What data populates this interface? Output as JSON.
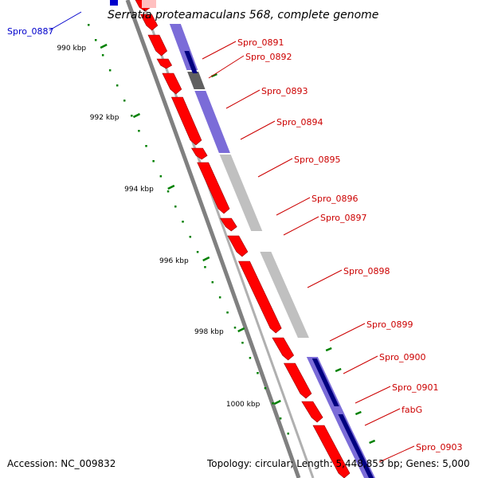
{
  "title": "Serratia proteamaculans 568, complete genome",
  "footer": {
    "accession": "Accession: NC_009832",
    "info": "Topology: circular; Length: 5,448,853 bp; Genes: 5,000"
  },
  "colors": {
    "forward_cds": "#ff0000",
    "reverse_cds": "#0000cc",
    "ortholog_light": "#7b6cd8",
    "ortholog_dark": "#000080",
    "ortholog_grey": "#c0c0c0",
    "backbone": "#808080",
    "ticks": "#008000",
    "label_red": "#cc0000",
    "label_blue": "#0000cc"
  },
  "ticks": [
    {
      "label": "990 kbp"
    },
    {
      "label": "992 kbp"
    },
    {
      "label": "994 kbp"
    },
    {
      "label": "996 kbp"
    },
    {
      "label": "998 kbp"
    },
    {
      "label": "1000 kbp"
    }
  ],
  "genes": [
    {
      "label": "Spro_0887",
      "color": "blue"
    },
    {
      "label": "Spro_0891",
      "color": "red"
    },
    {
      "label": "Spro_0892",
      "color": "red"
    },
    {
      "label": "Spro_0893",
      "color": "red"
    },
    {
      "label": "Spro_0894",
      "color": "red"
    },
    {
      "label": "Spro_0895",
      "color": "red"
    },
    {
      "label": "Spro_0896",
      "color": "red"
    },
    {
      "label": "Spro_0897",
      "color": "red"
    },
    {
      "label": "Spro_0898",
      "color": "red"
    },
    {
      "label": "Spro_0899",
      "color": "red"
    },
    {
      "label": "Spro_0900",
      "color": "red"
    },
    {
      "label": "Spro_0901",
      "color": "red"
    },
    {
      "label": "fabG",
      "color": "red"
    },
    {
      "label": "Spro_0903",
      "color": "red"
    }
  ]
}
